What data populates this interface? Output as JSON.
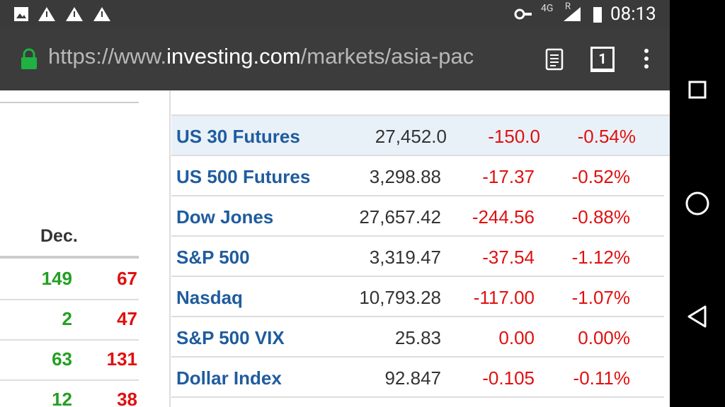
{
  "status_bar": {
    "network": "4G",
    "roaming": "R",
    "time": "08:13"
  },
  "address_bar": {
    "url": {
      "scheme": "https://www.",
      "domain": "investing.com",
      "path": "/markets/asia-pac"
    },
    "tab_count": "1"
  },
  "left_table": {
    "header": "Dec.",
    "rows": [
      [
        "149",
        "67"
      ],
      [
        "2",
        "47"
      ],
      [
        "63",
        "131"
      ],
      [
        "12",
        "38"
      ]
    ]
  },
  "right_table": {
    "rows": [
      {
        "name": "US 30 Futures",
        "last": "27,452.0",
        "change": "-150.0",
        "change_pct": "-0.54%"
      },
      {
        "name": "US 500 Futures",
        "last": "3,298.88",
        "change": "-17.37",
        "change_pct": "-0.52%"
      },
      {
        "name": "Dow Jones",
        "last": "27,657.42",
        "change": "-244.56",
        "change_pct": "-0.88%"
      },
      {
        "name": "S&P 500",
        "last": "3,319.47",
        "change": "-37.54",
        "change_pct": "-1.12%"
      },
      {
        "name": "Nasdaq",
        "last": "10,793.28",
        "change": "-117.00",
        "change_pct": "-1.07%"
      },
      {
        "name": "S&P 500 VIX",
        "last": "25.83",
        "change": "0.00",
        "change_pct": "0.00%"
      },
      {
        "name": "Dollar Index",
        "last": "92.847",
        "change": "-0.105",
        "change_pct": "-0.11%"
      }
    ]
  }
}
